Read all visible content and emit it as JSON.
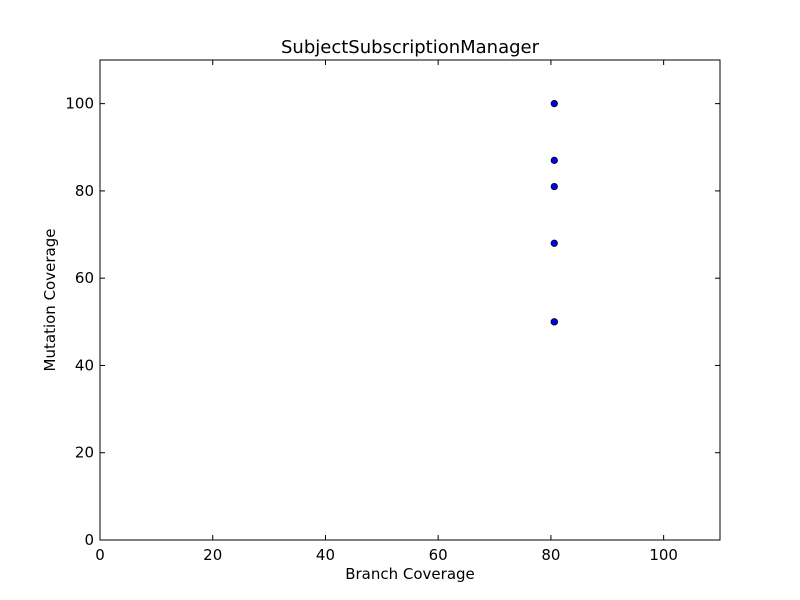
{
  "chart_data": {
    "type": "scatter",
    "title": "SubjectSubscriptionManager",
    "xlabel": "Branch Coverage",
    "ylabel": "Mutation Coverage",
    "xlim": [
      0,
      110
    ],
    "ylim": [
      0,
      110
    ],
    "xticks": [
      0,
      20,
      40,
      60,
      80,
      100
    ],
    "yticks": [
      0,
      20,
      40,
      60,
      80,
      100
    ],
    "grid": false,
    "marker_color": "#0000ff",
    "marker_edge_color": "#000000",
    "points": [
      {
        "x": 80.6,
        "y": 100
      },
      {
        "x": 80.6,
        "y": 87
      },
      {
        "x": 80.6,
        "y": 81
      },
      {
        "x": 80.6,
        "y": 68
      },
      {
        "x": 80.6,
        "y": 50
      },
      {
        "x": 80.6,
        "y": 50
      }
    ]
  }
}
